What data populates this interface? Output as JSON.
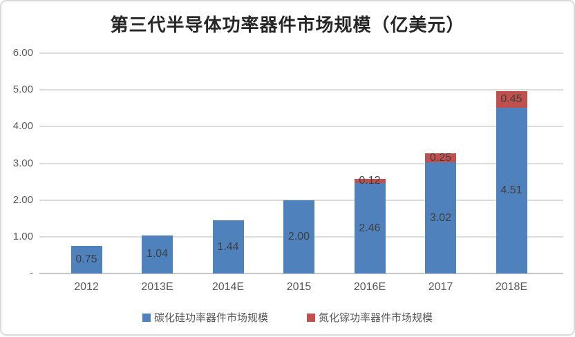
{
  "chart_data": {
    "type": "bar",
    "stacked": true,
    "title": "第三代半导体功率器件市场规模（亿美元）",
    "categories": [
      "2012",
      "2013E",
      "2014E",
      "2015",
      "2016E",
      "2017",
      "2018E"
    ],
    "series": [
      {
        "name": "碳化硅功率器件市场规模",
        "color": "#4f81bd",
        "values": [
          0.75,
          1.04,
          1.44,
          2.0,
          2.46,
          3.02,
          4.51
        ],
        "labels": [
          "0.75",
          "1.04",
          "1.44",
          "2.00",
          "2.46",
          "3.02",
          "4.51"
        ]
      },
      {
        "name": "氮化镓功率器件市场规模",
        "color": "#c0504d",
        "values": [
          0,
          0,
          0,
          0,
          0.12,
          0.25,
          0.45
        ],
        "labels": [
          "",
          "",
          "",
          "",
          "0.12",
          "0.25",
          "0.45"
        ]
      }
    ],
    "ylim": [
      0,
      6
    ],
    "y_ticks": [
      {
        "value": 6,
        "label": "6.00"
      },
      {
        "value": 5,
        "label": "5.00"
      },
      {
        "value": 4,
        "label": "4.00"
      },
      {
        "value": 3,
        "label": "3.00"
      },
      {
        "value": 2,
        "label": "2.00"
      },
      {
        "value": 1,
        "label": "1.00"
      },
      {
        "value": 0,
        "label": "-"
      }
    ],
    "grid": true,
    "legend_position": "bottom"
  },
  "colors": {
    "grid": "#dcdcdc",
    "axis": "#c6c6c6",
    "tick_text": "#595959",
    "value_text": "#3f3f3f",
    "border": "#dadada"
  }
}
